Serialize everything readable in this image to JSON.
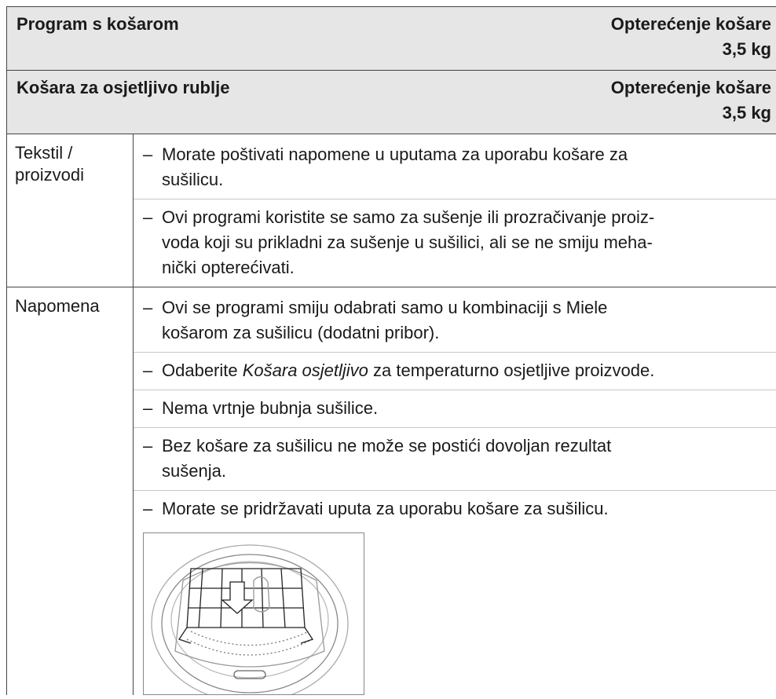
{
  "bullet": "–",
  "header": [
    {
      "title": "Program s košarom",
      "load": [
        "Opterećenje košare",
        "3,5 kg"
      ]
    },
    {
      "title": "Košara za osjetljivo rublje",
      "load": [
        "Opterećenje košare",
        "3,5 kg"
      ]
    }
  ],
  "rows": [
    {
      "label": [
        "Tekstil /",
        "proizvodi"
      ],
      "items": [
        {
          "lines": [
            [
              {
                "text": "Morate poštivati napomene u uputama za uporabu košare za"
              }
            ],
            [
              {
                "text": "sušilicu."
              }
            ]
          ]
        },
        {
          "lines": [
            [
              {
                "text": "Ovi programi koristite se samo za sušenje ili prozračivanje proiz-"
              }
            ],
            [
              {
                "text": "voda koji su prikladni za sušenje u sušilici, ali se ne smiju meha-"
              }
            ],
            [
              {
                "text": "nički opterećivati."
              }
            ]
          ]
        }
      ]
    },
    {
      "label": [
        "Napomena"
      ],
      "items": [
        {
          "lines": [
            [
              {
                "text": "Ovi se programi smiju odabrati samo u kombinaciji s Miele"
              }
            ],
            [
              {
                "text": "košarom za sušilicu (dodatni pribor)."
              }
            ]
          ]
        },
        {
          "lines": [
            [
              {
                "text": "Odaberite "
              },
              {
                "text": "Košara osjetljivo",
                "italic": true
              },
              {
                "text": " za temperaturno osjetljive proizvode."
              }
            ]
          ]
        },
        {
          "lines": [
            [
              {
                "text": "Nema vrtnje bubnja sušilice."
              }
            ]
          ]
        },
        {
          "lines": [
            [
              {
                "text": "Bez košare za sušilicu ne može se postići dovoljan rezultat"
              }
            ],
            [
              {
                "text": "sušenja."
              }
            ]
          ]
        },
        {
          "lines": [
            [
              {
                "text": "Morate se pridržavati uputa za uporabu košare za sušilicu."
              }
            ]
          ]
        }
      ],
      "figure": true
    }
  ]
}
